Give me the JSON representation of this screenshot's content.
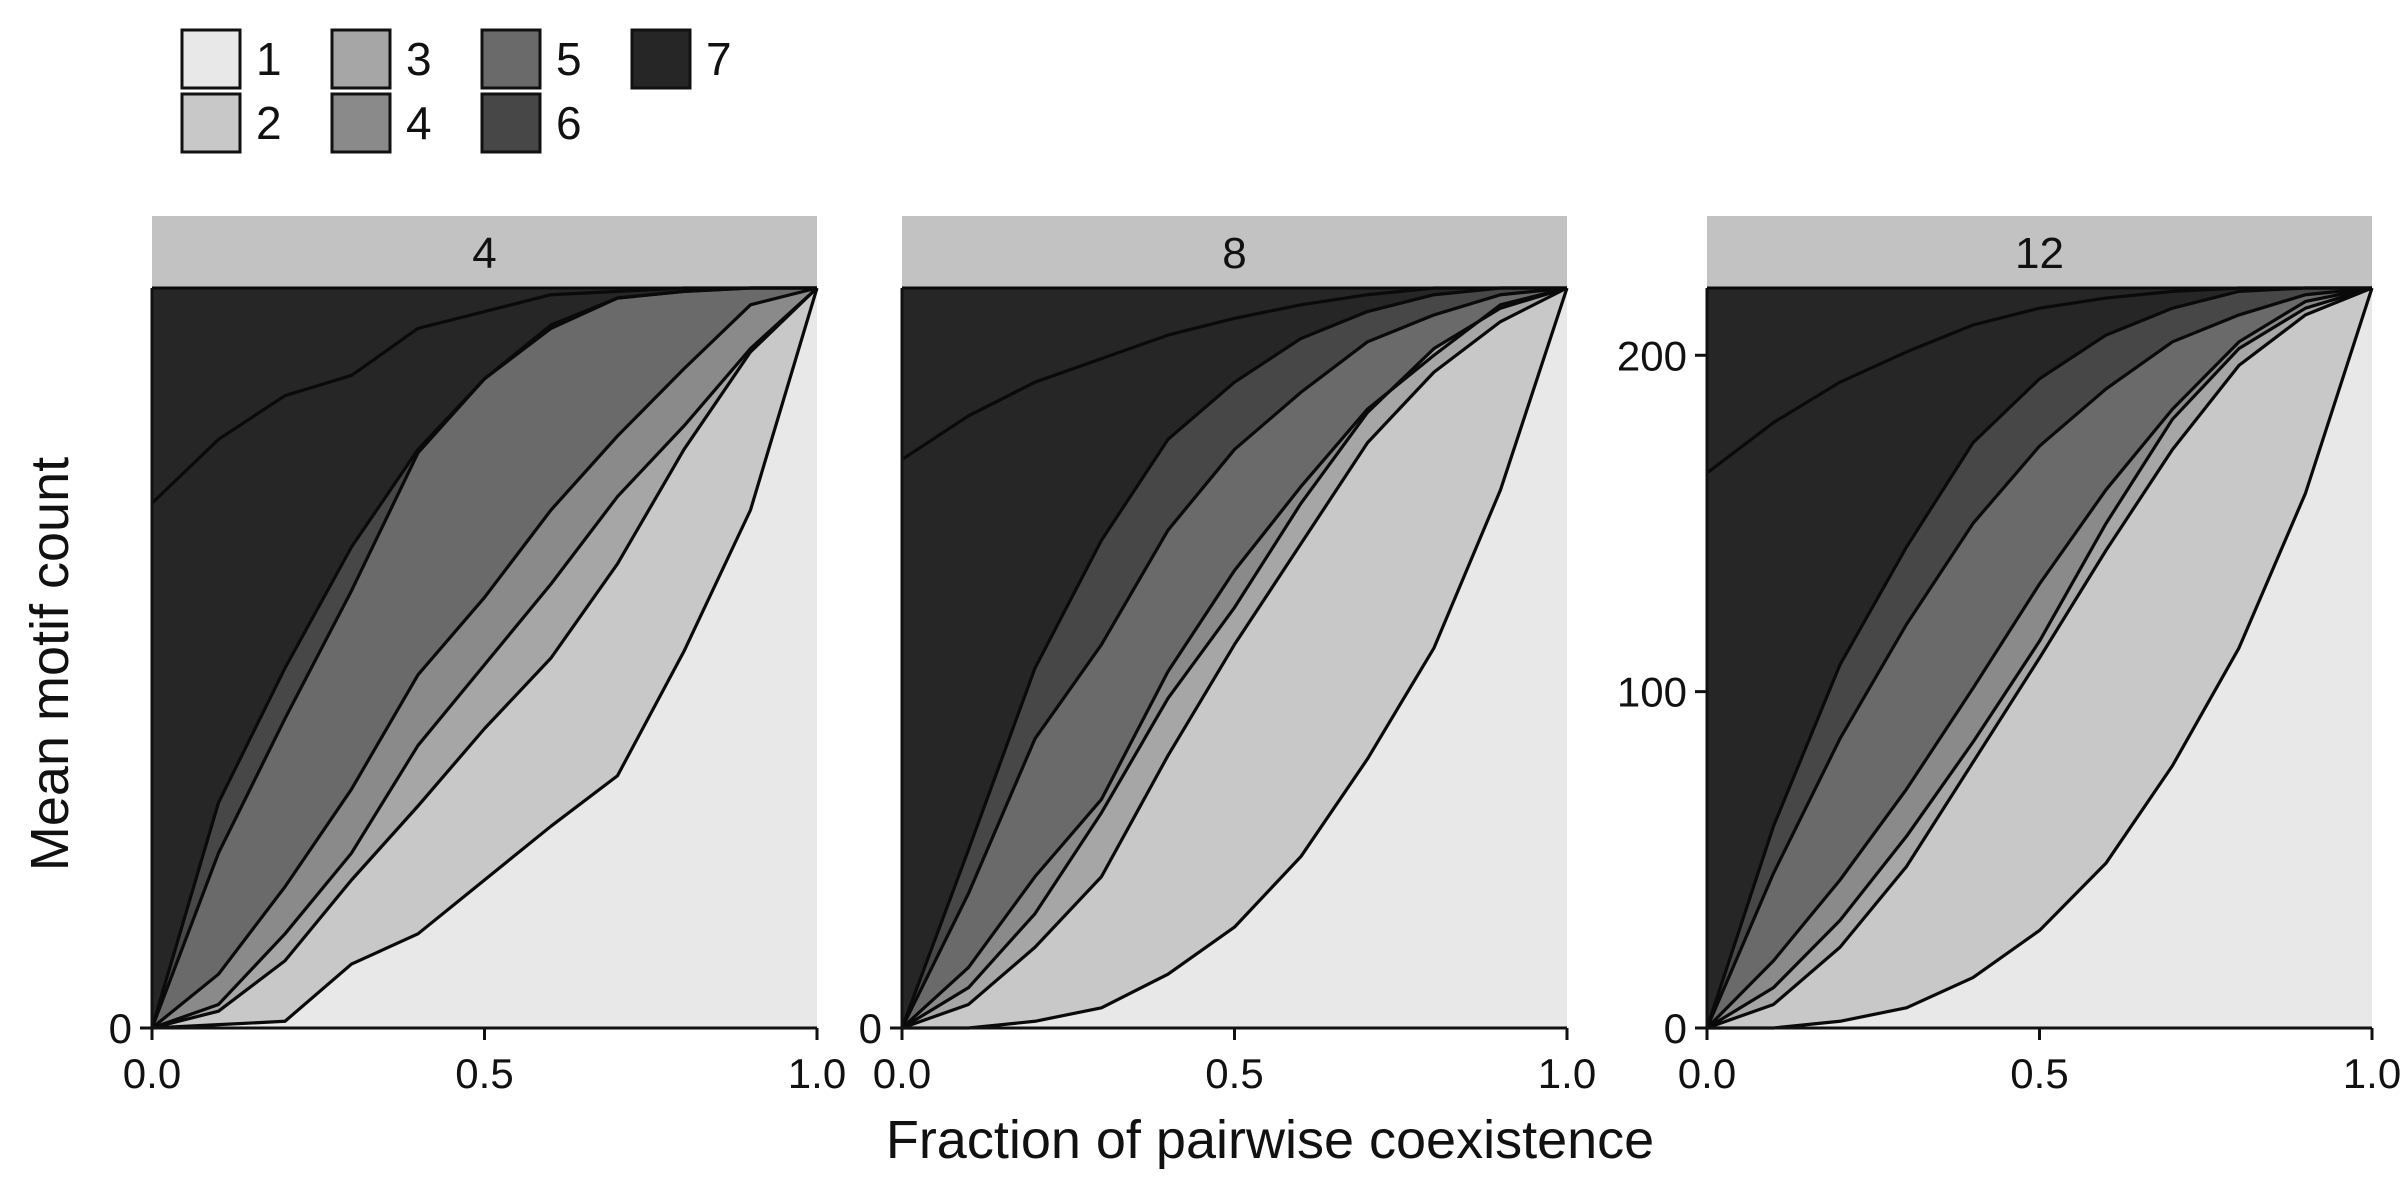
{
  "chart_data": {
    "type": "area",
    "stacked": true,
    "xlabel": "Fraction of pairwise coexistence",
    "ylabel": "Mean motif count",
    "xlim": [
      0,
      1
    ],
    "ylim": [
      0,
      220
    ],
    "x": [
      0,
      0.1,
      0.2,
      0.3,
      0.4,
      0.5,
      0.6,
      0.7,
      0.8,
      0.9,
      1.0
    ],
    "x_ticks": [
      "0.0",
      "0.5",
      "1.0"
    ],
    "legend": {
      "position": "top-left",
      "entries": [
        {
          "name": "1",
          "color": "#e8e8e8"
        },
        {
          "name": "2",
          "color": "#c8c8c8"
        },
        {
          "name": "3",
          "color": "#a6a6a6"
        },
        {
          "name": "4",
          "color": "#8a8a8a"
        },
        {
          "name": "5",
          "color": "#6a6a6a"
        },
        {
          "name": "6",
          "color": "#474747"
        },
        {
          "name": "7",
          "color": "#262626"
        }
      ]
    },
    "panels": [
      {
        "strip": "4",
        "y_ticks": [
          "0"
        ],
        "y_tick_values": [
          0
        ],
        "boundaries": [
          [
            0,
            1,
            2,
            19,
            28,
            44,
            60,
            75,
            112,
            154,
            220
          ],
          [
            0,
            5,
            20,
            44,
            66,
            89,
            110,
            138,
            172,
            201,
            220
          ],
          [
            0,
            7,
            28,
            52,
            84,
            108,
            132,
            158,
            179,
            202,
            220
          ],
          [
            0,
            16,
            42,
            71,
            105,
            128,
            154,
            176,
            196,
            215,
            220
          ],
          [
            0,
            52,
            92,
            130,
            171,
            193,
            208,
            217,
            219,
            220,
            220
          ],
          [
            0,
            67,
            107,
            143,
            172,
            193,
            209,
            217,
            219,
            220,
            220
          ],
          [
            156,
            175,
            188,
            194,
            208,
            213,
            218,
            219,
            220,
            220,
            220
          ]
        ]
      },
      {
        "strip": "8",
        "y_ticks": [
          "0"
        ],
        "y_tick_values": [
          0
        ],
        "boundaries": [
          [
            0,
            0,
            2,
            6,
            16,
            30,
            51,
            80,
            113,
            160,
            220
          ],
          [
            0,
            7,
            24,
            45,
            81,
            114,
            144,
            174,
            195,
            210,
            220
          ],
          [
            0,
            12,
            34,
            64,
            98,
            125,
            156,
            183,
            202,
            214,
            220
          ],
          [
            0,
            18,
            45,
            68,
            106,
            136,
            161,
            184,
            200,
            215,
            220
          ],
          [
            0,
            40,
            86,
            114,
            148,
            172,
            189,
            204,
            212,
            218,
            220
          ],
          [
            0,
            53,
            107,
            145,
            175,
            192,
            205,
            213,
            218,
            220,
            220
          ],
          [
            169,
            182,
            192,
            199,
            206,
            211,
            215,
            218,
            220,
            220,
            220
          ]
        ]
      },
      {
        "strip": "12",
        "y_ticks": [
          "0",
          "100",
          "200"
        ],
        "y_tick_values": [
          0,
          100,
          200
        ],
        "boundaries": [
          [
            0,
            0,
            2,
            6,
            15,
            29,
            49,
            78,
            113,
            159,
            220
          ],
          [
            0,
            7,
            24,
            48,
            79,
            110,
            142,
            172,
            197,
            212,
            220
          ],
          [
            0,
            12,
            32,
            57,
            85,
            115,
            150,
            181,
            202,
            214,
            220
          ],
          [
            0,
            20,
            44,
            71,
            101,
            132,
            160,
            184,
            204,
            216,
            220
          ],
          [
            0,
            46,
            86,
            120,
            150,
            173,
            190,
            204,
            212,
            218,
            220
          ],
          [
            0,
            60,
            108,
            143,
            174,
            193,
            206,
            214,
            219,
            220,
            220
          ],
          [
            165,
            180,
            192,
            201,
            209,
            214,
            217,
            219,
            220,
            220,
            220
          ]
        ]
      }
    ]
  }
}
